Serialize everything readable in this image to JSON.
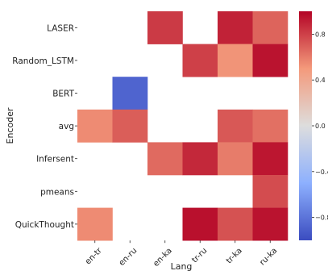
{
  "chart_data": {
    "type": "heatmap",
    "title": "",
    "xlabel": "Lang",
    "ylabel": "Encoder",
    "x_categories": [
      "en-tr",
      "en-ru",
      "en-ka",
      "tr-ru",
      "tr-ka",
      "ru-ka"
    ],
    "y_categories": [
      "LASER",
      "Random_LSTM",
      "BERT",
      "avg",
      "Infersent",
      "pmeans",
      "QuickThought"
    ],
    "values": [
      [
        null,
        null,
        0.82,
        null,
        0.9,
        0.68
      ],
      [
        null,
        null,
        null,
        0.8,
        0.52,
        0.95
      ],
      [
        null,
        -0.88,
        null,
        null,
        null,
        null
      ],
      [
        0.55,
        0.7,
        null,
        null,
        0.72,
        0.64
      ],
      [
        null,
        null,
        0.66,
        0.88,
        0.6,
        0.94
      ],
      [
        null,
        null,
        null,
        null,
        null,
        0.76
      ],
      [
        0.55,
        null,
        null,
        0.96,
        0.74,
        0.95
      ]
    ],
    "colormap": "coolwarm",
    "vmin": -1,
    "vmax": 1,
    "colorbar": {
      "ticks": [
        0.8,
        0.4,
        0.0,
        -0.4,
        -0.8
      ],
      "tick_labels": [
        "0.8",
        "0.4",
        "0.0",
        "−0.4",
        "−0.8"
      ]
    },
    "grid": false,
    "legend": "colorbar-right"
  }
}
